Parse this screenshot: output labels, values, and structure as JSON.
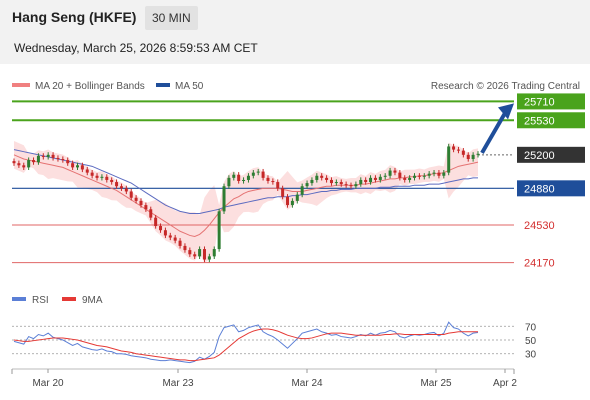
{
  "header": {
    "title": "Hang Seng (HKFE)",
    "interval": "30 MIN",
    "datetime": "Wednesday, March 25, 2026 8:59:53 AM CET"
  },
  "legend": {
    "ma20_label": "MA 20 + Bollinger Bands",
    "ma50_label": "MA 50",
    "credit": "Research © 2026 Trading Central",
    "rsi_label": "RSI",
    "rsi_ma_label": "9MA"
  },
  "colors": {
    "green_level": "#4aa31c",
    "blue_level": "#1f4e9a",
    "red_level": "#e06666",
    "current_price": "#333333",
    "candle_up": "#2e7d32",
    "candle_down": "#c62828",
    "bollinger_fill": "#fbd4d4",
    "ma20": "#e57373",
    "ma50": "#5c6bc0",
    "rsi_line": "#5b7fd6",
    "rsi_ma": "#e53935",
    "arrow": "#1f4e9a"
  },
  "levels": [
    {
      "value": "25710",
      "kind": "resistance",
      "style": "green"
    },
    {
      "value": "25530",
      "kind": "resistance",
      "style": "green"
    },
    {
      "value": "25200",
      "kind": "current",
      "style": "current"
    },
    {
      "value": "24880",
      "kind": "pivot",
      "style": "blue"
    },
    {
      "value": "24530",
      "kind": "support",
      "style": "red"
    },
    {
      "value": "24170",
      "kind": "support",
      "style": "red"
    }
  ],
  "x_ticks": [
    "Mar 20",
    "Mar 23",
    "Mar 24",
    "Mar 25",
    "Apr 2"
  ],
  "rsi_ticks": [
    "70",
    "50",
    "30"
  ],
  "chart_data": {
    "type": "candlestick",
    "y_range": [
      24100,
      25800
    ],
    "rsi_range": [
      15,
      85
    ],
    "closes": [
      25120,
      25100,
      25080,
      25150,
      25130,
      25190,
      25180,
      25200,
      25170,
      25160,
      25150,
      25120,
      25080,
      25100,
      25060,
      25030,
      25000,
      24980,
      24990,
      24960,
      24940,
      24900,
      24880,
      24850,
      24790,
      24760,
      24720,
      24680,
      24600,
      24520,
      24480,
      24430,
      24410,
      24380,
      24330,
      24290,
      24250,
      24230,
      24300,
      24200,
      24230,
      24300,
      24660,
      24900,
      24980,
      25010,
      24950,
      24960,
      25000,
      25030,
      25040,
      24980,
      24950,
      24940,
      24880,
      24800,
      24720,
      24760,
      24820,
      24900,
      24930,
      24960,
      25000,
      24980,
      24960,
      24930,
      24940,
      24920,
      24910,
      24900,
      24920,
      24960,
      24940,
      24980,
      24960,
      24990,
      25000,
      25050,
      25030,
      24980,
      24960,
      24980,
      25000,
      24990,
      25000,
      25020,
      25030,
      25000,
      25030,
      25280,
      25250,
      25240,
      25200,
      25160,
      25200,
      25210
    ],
    "ma20": [
      25200,
      25180,
      25160,
      25150,
      25140,
      25130,
      25120,
      25110,
      25100,
      25090,
      25080,
      25060,
      25040,
      25020,
      25000,
      24980,
      24960,
      24940,
      24920,
      24900,
      24880,
      24860,
      24830,
      24800,
      24770,
      24740,
      24710,
      24680,
      24650,
      24620,
      24590,
      24560,
      24530,
      24500,
      24470,
      24450,
      24430,
      24420,
      24440,
      24480,
      24530,
      24590,
      24650,
      24700,
      24740,
      24780,
      24800,
      24830,
      24850,
      24860,
      24870,
      24880,
      24880,
      24880,
      24880,
      24870,
      24860,
      24850,
      24850,
      24850,
      24860,
      24870,
      24880,
      24890,
      24900,
      24900,
      24910,
      24910,
      24910,
      24910,
      24910,
      24920,
      24920,
      24930,
      24940,
      24950,
      24960,
      24970,
      24970,
      24980,
      24980,
      24990,
      24990,
      25000,
      25000,
      25010,
      25020,
      25020,
      25030,
      25050,
      25070,
      25090,
      25100,
      25110,
      25120,
      25130
    ],
    "ma50": [
      25250,
      25240,
      25230,
      25220,
      25210,
      25200,
      25190,
      25180,
      25170,
      25160,
      25150,
      25140,
      25130,
      25120,
      25110,
      25100,
      25090,
      25070,
      25050,
      25030,
      25010,
      24990,
      24970,
      24950,
      24930,
      24900,
      24870,
      24840,
      24810,
      24780,
      24750,
      24720,
      24700,
      24680,
      24660,
      24650,
      24640,
      24640,
      24640,
      24650,
      24660,
      24670,
      24680,
      24700,
      24710,
      24720,
      24730,
      24740,
      24750,
      24760,
      24770,
      24780,
      24790,
      24790,
      24800,
      24800,
      24800,
      24810,
      24810,
      24820,
      24820,
      24830,
      24840,
      24850,
      24850,
      24860,
      24860,
      24870,
      24870,
      24870,
      24880,
      24880,
      24880,
      24880,
      24880,
      24890,
      24890,
      24890,
      24900,
      24900,
      24900,
      24900,
      24910,
      24910,
      24910,
      24920,
      24920,
      24920,
      24930,
      24940,
      24950,
      24960,
      24970,
      24970,
      24980,
      24980
    ],
    "rsi": [
      48,
      46,
      44,
      55,
      52,
      58,
      56,
      60,
      54,
      52,
      50,
      46,
      42,
      45,
      40,
      38,
      36,
      35,
      37,
      34,
      33,
      30,
      30,
      29,
      27,
      26,
      25,
      24,
      22,
      21,
      20,
      20,
      21,
      20,
      19,
      18,
      17,
      19,
      25,
      22,
      26,
      32,
      55,
      68,
      70,
      72,
      62,
      64,
      68,
      70,
      72,
      62,
      58,
      55,
      50,
      44,
      38,
      45,
      52,
      60,
      62,
      64,
      66,
      62,
      60,
      57,
      58,
      55,
      54,
      53,
      55,
      58,
      56,
      60,
      57,
      60,
      61,
      64,
      62,
      55,
      53,
      56,
      58,
      57,
      58,
      60,
      61,
      56,
      60,
      76,
      68,
      66,
      60,
      56,
      60,
      61
    ],
    "rsi_ma": [
      50,
      49,
      48,
      48,
      49,
      50,
      51,
      52,
      53,
      53,
      53,
      52,
      51,
      50,
      48,
      46,
      44,
      42,
      41,
      40,
      38,
      36,
      34,
      33,
      32,
      30,
      29,
      28,
      27,
      26,
      25,
      24,
      23,
      22,
      21,
      21,
      20,
      20,
      21,
      22,
      23,
      24,
      28,
      34,
      40,
      46,
      52,
      56,
      60,
      63,
      65,
      66,
      66,
      65,
      63,
      60,
      57,
      55,
      53,
      52,
      52,
      53,
      55,
      57,
      59,
      60,
      60,
      60,
      59,
      58,
      57,
      57,
      57,
      57,
      57,
      57,
      58,
      58,
      59,
      59,
      58,
      58,
      58,
      58,
      58,
      58,
      58,
      58,
      58,
      60,
      61,
      62,
      62,
      62,
      62,
      62
    ],
    "arrow": {
      "from": 25200,
      "to": 25710
    }
  }
}
